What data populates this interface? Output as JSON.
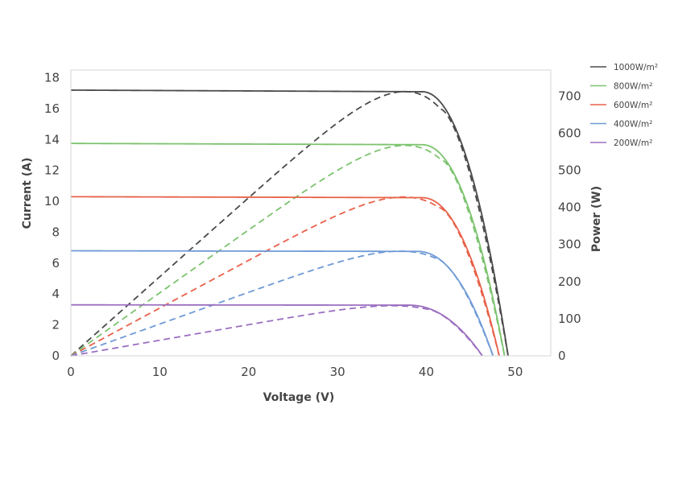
{
  "chart_data": {
    "type": "line",
    "xlabel": "Voltage (V)",
    "ylabel": "Current (A)",
    "y2label": "Power (W)",
    "xlim": [
      0,
      54
    ],
    "ylim": [
      0,
      18.5
    ],
    "y2lim": [
      0,
      770
    ],
    "xticks": [
      "0",
      "10",
      "20",
      "30",
      "40",
      "50"
    ],
    "yticks": [
      "0",
      "2",
      "4",
      "6",
      "8",
      "10",
      "12",
      "14",
      "16",
      "18"
    ],
    "y2ticks": [
      "0",
      "100",
      "200",
      "300",
      "400",
      "500",
      "600",
      "700"
    ],
    "grid": false,
    "legend_position": "top-right, outside plot",
    "series": [
      {
        "name": "1000W/m²",
        "color": "#4a4a4a",
        "isc": 17.2,
        "voc": 49.2,
        "current_knee_v": 39.5,
        "pmax": 712,
        "vmp": 41.6
      },
      {
        "name": "800W/m²",
        "color": "#7cc36e",
        "isc": 13.75,
        "voc": 48.8,
        "current_knee_v": 39.5,
        "pmax": 567,
        "vmp": 41.6
      },
      {
        "name": "600W/m²",
        "color": "#e8624a",
        "isc": 10.3,
        "voc": 48.2,
        "current_knee_v": 39.5,
        "pmax": 428,
        "vmp": 41.4
      },
      {
        "name": "400W/m²",
        "color": "#6f9ad6",
        "isc": 6.8,
        "voc": 47.5,
        "current_knee_v": 39.0,
        "pmax": 282,
        "vmp": 41.0
      },
      {
        "name": "200W/m²",
        "color": "#9b6fc1",
        "isc": 3.3,
        "voc": 46.3,
        "current_knee_v": 38.0,
        "pmax": 135,
        "vmp": 40.0
      }
    ]
  }
}
